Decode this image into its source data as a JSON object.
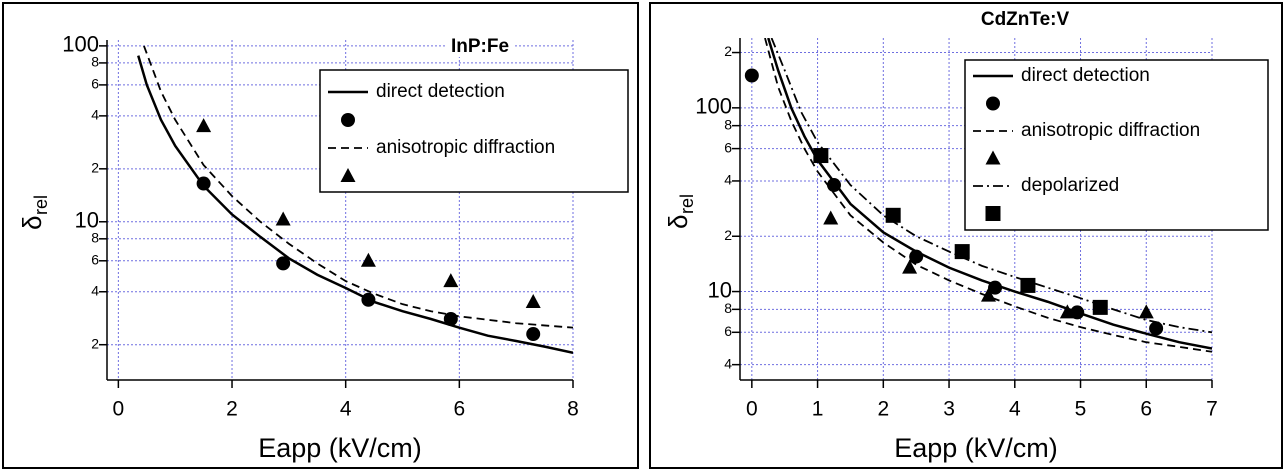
{
  "chart_data": [
    {
      "type": "line",
      "title": "InP:Fe",
      "xlabel": "Eapp (kV/cm)",
      "ylabel": "δ",
      "ylabel_sub": "rel",
      "ylog": true,
      "grid": true,
      "legend": "upper right",
      "xlim": [
        -0.2,
        8
      ],
      "xticks": [
        0,
        2,
        4,
        6,
        8
      ],
      "ylim": [
        1.26,
        108
      ],
      "yticks": [
        100,
        {
          "value": 80,
          "label": "8"
        },
        {
          "value": 60,
          "label": "6"
        },
        {
          "value": 40,
          "label": "4"
        },
        {
          "value": 20,
          "label": "2"
        },
        10,
        {
          "value": 8,
          "label": "8"
        },
        {
          "value": 6,
          "label": "6"
        },
        {
          "value": 4,
          "label": "4"
        },
        {
          "value": 2,
          "label": "2"
        }
      ],
      "series": [
        {
          "name": "direct detection",
          "style": "solid",
          "color": "#000000",
          "x": [
            0.35,
            0.5,
            0.75,
            1.0,
            1.5,
            2.0,
            2.5,
            3.0,
            3.5,
            4.0,
            4.5,
            5.0,
            5.5,
            6.0,
            6.5,
            7.0,
            7.5,
            8.0
          ],
          "values": [
            88,
            60,
            38,
            27,
            16,
            11,
            8.2,
            6.2,
            5.0,
            4.2,
            3.5,
            3.1,
            2.8,
            2.5,
            2.25,
            2.1,
            1.95,
            1.8
          ]
        },
        {
          "marker": "circle",
          "color": "#000000",
          "x": [
            1.5,
            2.9,
            4.4,
            5.85,
            7.3
          ],
          "values": [
            16.5,
            5.8,
            3.6,
            2.8,
            2.3
          ]
        },
        {
          "name": "anisotropic diffraction",
          "style": "dashed",
          "color": "#000000",
          "x": [
            0.45,
            0.75,
            1.0,
            1.5,
            2.0,
            2.5,
            3.0,
            3.5,
            4.0,
            4.5,
            5.0,
            5.5,
            6.0,
            7.0,
            8.0
          ],
          "values": [
            100,
            55,
            38,
            21,
            14,
            10,
            7.5,
            5.8,
            4.6,
            3.9,
            3.4,
            3.1,
            2.9,
            2.65,
            2.5
          ]
        },
        {
          "marker": "triangle",
          "color": "#000000",
          "x": [
            1.5,
            2.9,
            4.4,
            5.85,
            7.3
          ],
          "values": [
            35,
            10.3,
            6.0,
            4.6,
            3.5
          ]
        }
      ]
    },
    {
      "type": "line",
      "title": "CdZnTe:V",
      "xlabel": "Eapp (kV/cm)",
      "ylabel": "δ",
      "ylabel_sub": "rel",
      "ylog": true,
      "grid": true,
      "legend": "upper right",
      "xlim": [
        -0.18,
        7
      ],
      "xticks": [
        0,
        1,
        2,
        3,
        4,
        5,
        6,
        7
      ],
      "ylim": [
        3.3,
        240
      ],
      "yticks": [
        {
          "value": 200,
          "label": "2"
        },
        100,
        {
          "value": 80,
          "label": "8"
        },
        {
          "value": 60,
          "label": "6"
        },
        {
          "value": 40,
          "label": "4"
        },
        {
          "value": 20,
          "label": "2"
        },
        10,
        {
          "value": 8,
          "label": "8"
        },
        {
          "value": 6,
          "label": "6"
        },
        {
          "value": 4,
          "label": "4"
        }
      ],
      "series": [
        {
          "name": "direct detection",
          "style": "solid",
          "color": "#000000",
          "x": [
            0.25,
            0.4,
            0.6,
            0.8,
            1.0,
            1.5,
            2.0,
            2.5,
            3.0,
            3.5,
            4.0,
            4.5,
            5.0,
            5.5,
            6.0,
            6.5,
            7.0
          ],
          "values": [
            240,
            160,
            100,
            70,
            52,
            30,
            21,
            16.5,
            13.5,
            11.5,
            10,
            8.8,
            7.6,
            6.6,
            5.9,
            5.3,
            4.9
          ]
        },
        {
          "marker": "circle",
          "color": "#000000",
          "x": [
            0,
            1.25,
            2.5,
            3.7,
            4.95,
            6.15
          ],
          "values": [
            150,
            38,
            15.5,
            10.5,
            7.7,
            6.3
          ]
        },
        {
          "name": "anisotropic diffraction",
          "style": "dashed",
          "color": "#000000",
          "x": [
            0.2,
            0.4,
            0.6,
            0.8,
            1.0,
            1.5,
            2.0,
            2.5,
            3.0,
            3.5,
            4.0,
            4.5,
            5.0,
            5.5,
            6.0,
            6.5,
            7.0
          ],
          "values": [
            240,
            130,
            85,
            60,
            45,
            26,
            18.5,
            14,
            11.5,
            9.7,
            8.3,
            7.2,
            6.4,
            5.8,
            5.3,
            5.0,
            4.7
          ]
        },
        {
          "marker": "triangle",
          "color": "#000000",
          "x": [
            1.2,
            2.4,
            3.6,
            4.8,
            6.0
          ],
          "values": [
            25,
            13.5,
            9.5,
            7.7,
            7.7
          ]
        },
        {
          "name": "depolarized",
          "style": "dashdot",
          "color": "#000000",
          "x": [
            0.3,
            0.5,
            0.75,
            1.0,
            1.5,
            2.0,
            2.5,
            3.0,
            3.5,
            4.0,
            4.5,
            5.0,
            5.5,
            6.0,
            6.5,
            7.0
          ],
          "values": [
            240,
            160,
            95,
            65,
            38,
            26,
            20,
            16.5,
            13.8,
            12,
            10.5,
            9.2,
            8.0,
            7.0,
            6.4,
            6.0
          ]
        },
        {
          "marker": "square",
          "color": "#000000",
          "x": [
            1.05,
            2.15,
            3.2,
            4.2,
            5.3
          ],
          "values": [
            55,
            26,
            16.5,
            10.8,
            8.2
          ]
        }
      ]
    }
  ]
}
